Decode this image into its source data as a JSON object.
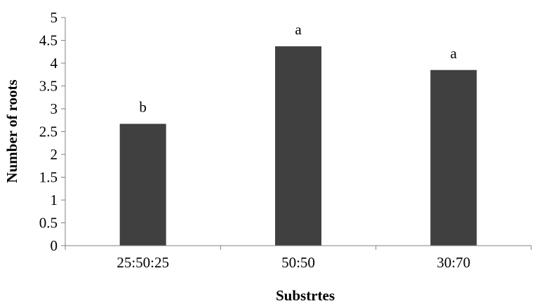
{
  "chart_data": {
    "type": "bar",
    "categories": [
      "25:50:25",
      "50:50",
      "30:70"
    ],
    "values": [
      2.67,
      4.37,
      3.85
    ],
    "data_labels": [
      "b",
      "a",
      "a"
    ],
    "xlabel": "Substrtes",
    "ylabel": "Number of roots",
    "ylim": [
      0,
      5
    ],
    "y_ticks": [
      "0",
      "0.5",
      "1",
      "1.5",
      "2",
      "2.5",
      "3",
      "3.5",
      "4",
      "4.5",
      "5"
    ],
    "grid": false,
    "legend": "none",
    "bar_color": "#404040"
  }
}
